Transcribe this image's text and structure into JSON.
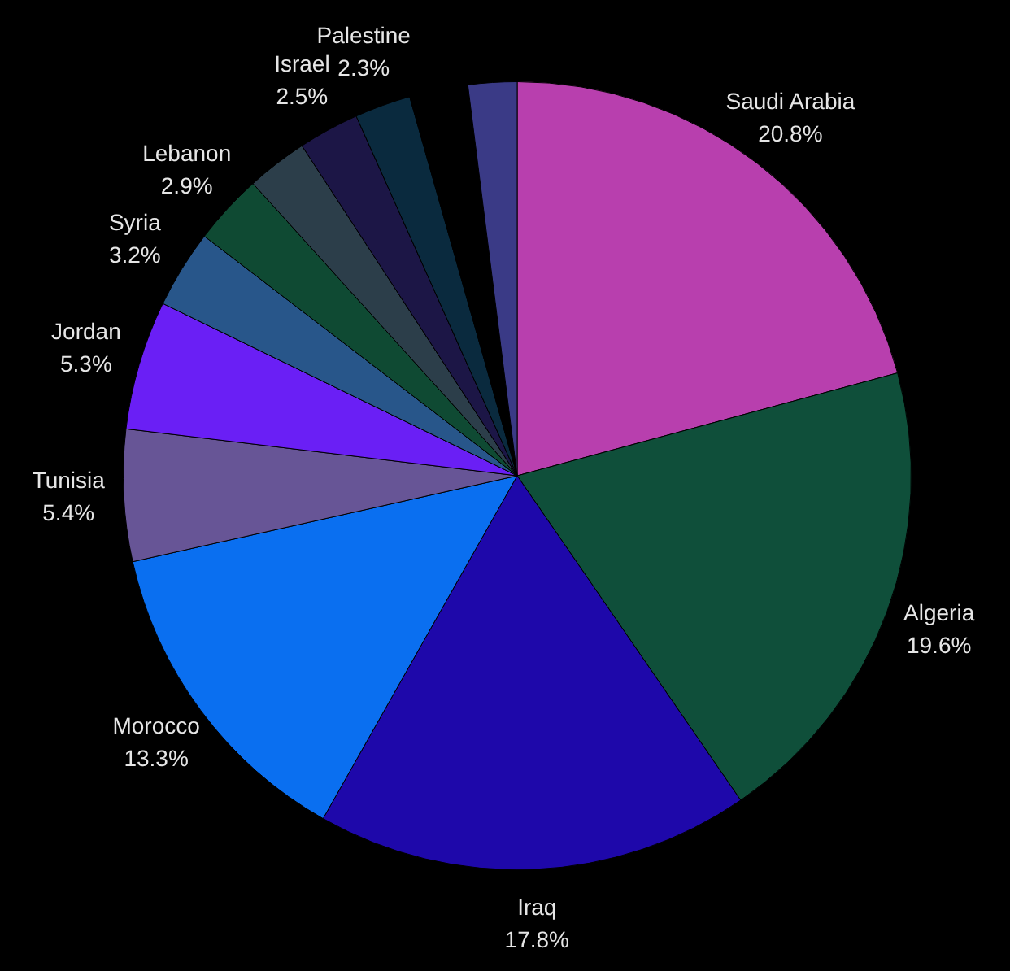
{
  "chart_data": {
    "type": "pie",
    "categories": [
      "Saudi Arabia",
      "Algeria",
      "Iraq",
      "Morocco",
      "Tunisia",
      "Jordan",
      "Syria",
      "Lebanon",
      null,
      "Israel",
      "Palestine",
      null,
      null
    ],
    "values": [
      20.8,
      19.6,
      17.8,
      13.3,
      5.4,
      5.3,
      3.2,
      2.9,
      2.5,
      2.5,
      2.3,
      2.4,
      2.0
    ],
    "value_labels": [
      "20.8%",
      "19.6%",
      "17.8%",
      "13.3%",
      "5.4%",
      "5.3%",
      "3.2%",
      "2.9%",
      null,
      "2.5%",
      "2.3%",
      null,
      null
    ],
    "colors": [
      "#b83fae",
      "#0f4f3a",
      "#1e08aa",
      "#0a6ff0",
      "#675596",
      "#6a1ff5",
      "#28568a",
      "#0f4a33",
      "#2c3e4a",
      "#1c1646",
      "#0a2a3e",
      "#000000",
      "#3a3a86"
    ],
    "legend": false
  }
}
